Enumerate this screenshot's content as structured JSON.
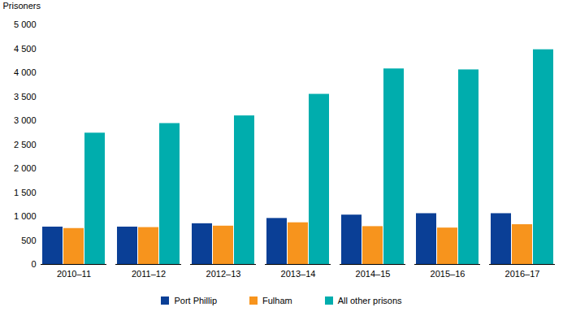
{
  "chart_data": {
    "type": "bar",
    "y_label": "Prisoners",
    "categories": [
      "2010–11",
      "2011–12",
      "2012–13",
      "2013–14",
      "2014–15",
      "2015–16",
      "2016–17"
    ],
    "series": [
      {
        "name": "Port Phillip",
        "color": "#0a3f96",
        "values": [
          780,
          780,
          850,
          960,
          1030,
          1060,
          1060
        ]
      },
      {
        "name": "Fulham",
        "color": "#f7941d",
        "values": [
          750,
          770,
          800,
          870,
          790,
          760,
          830
        ]
      },
      {
        "name": "All other prisons",
        "color": "#00adad",
        "values": [
          2740,
          2940,
          3100,
          3550,
          4080,
          4060,
          4480
        ]
      }
    ],
    "ylim": [
      0,
      5000
    ],
    "yticks": [
      0,
      500,
      {
        "value": 1000,
        "label": "1 000"
      },
      {
        "value": 1500,
        "label": "1 500"
      },
      {
        "value": 2000,
        "label": "2 000"
      },
      {
        "value": 2500,
        "label": "2 500"
      },
      {
        "value": 3000,
        "label": "3 000"
      },
      {
        "value": 3500,
        "label": "3 500"
      },
      {
        "value": 4000,
        "label": "4 000"
      },
      {
        "value": 4500,
        "label": "4 500"
      },
      {
        "value": 5000,
        "label": "5 000"
      }
    ],
    "grid": false,
    "legend": "bottom"
  }
}
